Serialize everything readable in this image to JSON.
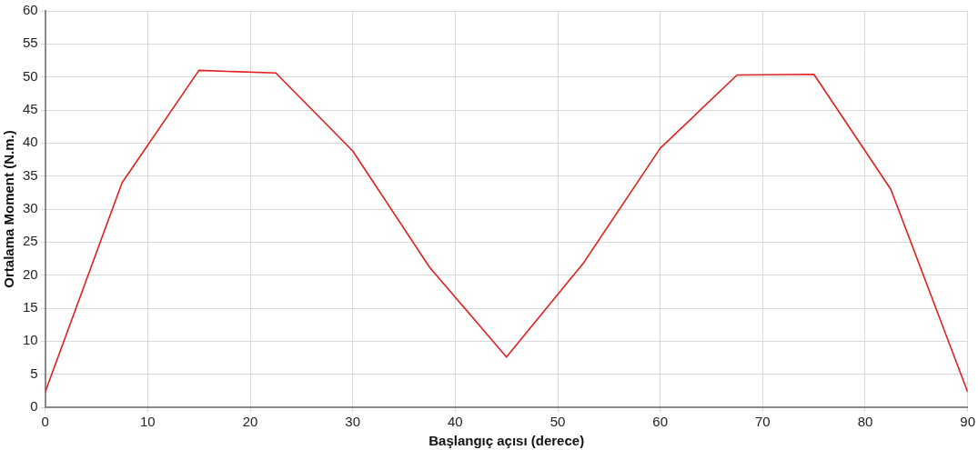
{
  "chart_data": {
    "type": "line",
    "xlabel": "Başlangıç açısı (derece)",
    "ylabel": "Ortalama Moment (N.m.)",
    "x": [
      0,
      7.5,
      15,
      22.5,
      30,
      37.5,
      45,
      52.5,
      60,
      67.5,
      75,
      82.5,
      90
    ],
    "series": [
      {
        "color": "#e02020",
        "values": [
          2.3,
          34,
          51,
          50.6,
          38.8,
          21.2,
          7.6,
          21.8,
          39.2,
          50.3,
          50.4,
          33,
          2.3
        ]
      }
    ],
    "xlim": [
      0,
      90
    ],
    "xticks": [
      0,
      10,
      20,
      30,
      40,
      50,
      60,
      70,
      80,
      90
    ],
    "ylim": [
      0,
      60
    ],
    "yticks": [
      0,
      5,
      10,
      15,
      20,
      25,
      30,
      35,
      40,
      45,
      50,
      55,
      60
    ],
    "grid": true,
    "legend": false,
    "marker": "none",
    "line_style": "solid"
  }
}
